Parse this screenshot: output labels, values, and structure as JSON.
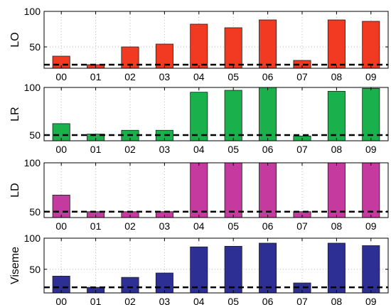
{
  "chart_data": [
    {
      "type": "bar",
      "ylabel": "LO",
      "categories": [
        "00",
        "01",
        "02",
        "03",
        "04",
        "05",
        "06",
        "07",
        "08",
        "09"
      ],
      "values": [
        37,
        25,
        50,
        54,
        82,
        77,
        88,
        31,
        88,
        86
      ],
      "ylim": [
        20,
        100
      ],
      "yticks": [
        50,
        100
      ],
      "baseline": 25,
      "bar_color": "#f23a22",
      "grid": true
    },
    {
      "type": "bar",
      "ylabel": "LR",
      "categories": [
        "00",
        "01",
        "02",
        "03",
        "04",
        "05",
        "06",
        "07",
        "08",
        "09"
      ],
      "values": [
        62,
        51,
        55,
        55,
        95,
        97,
        100,
        49,
        96,
        99
      ],
      "ylim": [
        44,
        100
      ],
      "yticks": [
        50,
        100
      ],
      "baseline": 50,
      "bar_color": "#1ab04c",
      "grid": true
    },
    {
      "type": "bar",
      "ylabel": "LD",
      "categories": [
        "00",
        "01",
        "02",
        "03",
        "04",
        "05",
        "06",
        "07",
        "08",
        "09"
      ],
      "values": [
        67,
        50,
        50,
        50,
        100,
        100,
        100,
        50,
        100,
        100
      ],
      "ylim": [
        44,
        100
      ],
      "yticks": [
        50,
        100
      ],
      "baseline": 50,
      "bar_color": "#c43a9e",
      "grid": true
    },
    {
      "type": "bar",
      "ylabel": "Viseme",
      "categories": [
        "00",
        "01",
        "02",
        "03",
        "04",
        "05",
        "06",
        "07",
        "08",
        "09"
      ],
      "values": [
        39,
        21,
        37,
        44,
        86,
        87,
        92,
        28,
        92,
        88
      ],
      "ylim": [
        12,
        100
      ],
      "yticks": [
        50,
        100
      ],
      "baseline": 21,
      "bar_color": "#2e2f95",
      "grid": true
    }
  ]
}
